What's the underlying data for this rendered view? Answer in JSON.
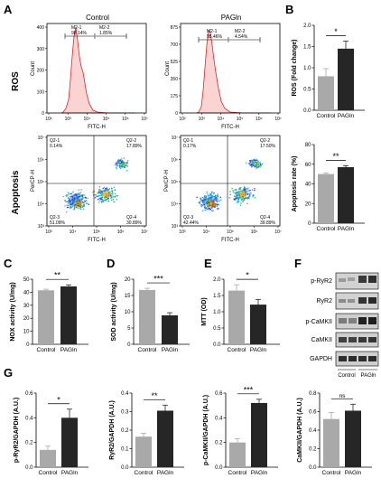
{
  "colors": {
    "control": "#a9a9a9",
    "pagln": "#262626",
    "axis": "#000000",
    "histLine": "#d62828",
    "histFill": "#f9d4d2",
    "blotBg": "#d2d2d2"
  },
  "panel_labels": [
    "A",
    "B",
    "C",
    "D",
    "E",
    "F",
    "G"
  ],
  "row_labels": {
    "ros": "ROS",
    "apoptosis": "Apoptosis"
  },
  "flow": {
    "control_title": "Control",
    "pagln_title": "PAGln",
    "hist": {
      "y_label": "Count",
      "x_label": "FITC-H",
      "x_ticks": [
        "10²",
        "10³",
        "10⁴",
        "10⁵",
        "10⁶",
        "10⁷"
      ],
      "control": {
        "y_ticks": [
          "0",
          "100",
          "200",
          "300",
          "400"
        ],
        "m1": "M2-1",
        "m1_pct": "98.14%",
        "m2": "M2-2",
        "m2_pct": "1.85%"
      },
      "pagln": {
        "y_ticks": [
          "0",
          "175",
          "350",
          "525",
          "700",
          "875"
        ],
        "m1": "M2-1",
        "m1_pct": "95.46%",
        "m2": "M2-2",
        "m2_pct": "4.54%"
      }
    },
    "dot": {
      "y_label": "PerCP-H",
      "x_label": "FITC-H",
      "x_ticks": [
        "10³",
        "10⁴",
        "10⁵",
        "10⁶",
        "10⁷"
      ],
      "y_ticks": [
        "10³",
        "10⁴",
        "10⁵",
        "10⁶",
        "10⁷"
      ],
      "control": {
        "q1": "Q2-1",
        "q1_pct": "0.14%",
        "q2": "Q2-2",
        "q2_pct": "17.89%",
        "q3": "Q2-3",
        "q3_pct": "51.09%",
        "q4": "Q2-4",
        "q4_pct": "30.89%"
      },
      "pagln": {
        "q1": "Q2-1",
        "q1_pct": "0.17%",
        "q2": "Q2-2",
        "q2_pct": "17.50%",
        "q3": "Q2-3",
        "q3_pct": "42.44%",
        "q4": "Q2-4",
        "q4_pct": "39.89%"
      }
    }
  },
  "blot": {
    "labels": [
      "p-RyR2",
      "RyR2",
      "p-CaMKII",
      "CaMKII",
      "GAPDH"
    ],
    "groups": [
      "Control",
      "PAGln"
    ]
  },
  "chart_data": [
    {
      "id": "B-ros",
      "panel": "B",
      "type": "bar",
      "categories": [
        "Control",
        "PAGln"
      ],
      "values": [
        0.8,
        1.45
      ],
      "errors": [
        0.18,
        0.18
      ],
      "ylabel": "ROS (Fold change)",
      "ylim": [
        0,
        2.0
      ],
      "yticks": [
        "0.0",
        "0.5",
        "1.0",
        "1.5",
        "2.0"
      ],
      "significance": "*"
    },
    {
      "id": "B-apoptosis",
      "panel": "B",
      "type": "bar",
      "categories": [
        "Control",
        "PAGln"
      ],
      "values": [
        50,
        57
      ],
      "errors": [
        1.0,
        1.5
      ],
      "ylabel": "Apoptosis rate (%)",
      "ylim": [
        0,
        80
      ],
      "yticks": [
        "0",
        "20",
        "40",
        "60",
        "80"
      ],
      "significance": "**"
    },
    {
      "id": "C-nox",
      "panel": "C",
      "type": "bar",
      "categories": [
        "Control",
        "PAGln"
      ],
      "values": [
        41.5,
        44.5
      ],
      "errors": [
        0.8,
        1.2
      ],
      "ylabel": "NOX activity (U/mg)",
      "ylim": [
        0,
        50
      ],
      "yticks": [
        "0",
        "10",
        "20",
        "30",
        "40",
        "50"
      ],
      "significance": "**"
    },
    {
      "id": "D-sod",
      "panel": "D",
      "type": "bar",
      "categories": [
        "Control",
        "PAGln"
      ],
      "values": [
        16.7,
        8.9
      ],
      "errors": [
        0.5,
        0.8
      ],
      "ylabel": "SOD activity (U/mg)",
      "ylim": [
        0,
        20
      ],
      "yticks": [
        "0",
        "5",
        "10",
        "15",
        "20"
      ],
      "significance": "***"
    },
    {
      "id": "E-mtt",
      "panel": "E",
      "type": "bar",
      "categories": [
        "Control",
        "PAGln"
      ],
      "values": [
        1.65,
        1.22
      ],
      "errors": [
        0.18,
        0.16
      ],
      "ylabel": "MTT (OD)",
      "ylim": [
        0,
        2.0
      ],
      "yticks": [
        "0.0",
        "0.5",
        "1.0",
        "1.5",
        "2.0"
      ],
      "significance": "*"
    },
    {
      "id": "G-prd",
      "panel": "G",
      "type": "bar",
      "categories": [
        "Control",
        "PAGln"
      ],
      "values": [
        0.14,
        0.4
      ],
      "errors": [
        0.03,
        0.07
      ],
      "ylabel": "p-RyR2/GAPDH (A.U.)",
      "ylim": [
        0,
        0.6
      ],
      "yticks": [
        "0.0",
        "0.2",
        "0.4",
        "0.6"
      ],
      "significance": "*"
    },
    {
      "id": "G-ryr2",
      "panel": "G",
      "type": "bar",
      "categories": [
        "Control",
        "PAGln"
      ],
      "values": [
        0.165,
        0.305
      ],
      "errors": [
        0.018,
        0.03
      ],
      "ylabel": "RyR2/GAPDH (A.U.)",
      "ylim": [
        0,
        0.4
      ],
      "yticks": [
        "0.0",
        "0.1",
        "0.2",
        "0.3",
        "0.4"
      ],
      "significance": "**"
    },
    {
      "id": "G-pcamkii",
      "panel": "G",
      "type": "bar",
      "categories": [
        "Control",
        "PAGln"
      ],
      "values": [
        0.2,
        0.52
      ],
      "errors": [
        0.03,
        0.03
      ],
      "ylabel": "p-CaMKII/GAPDH (A.U.)",
      "ylim": [
        0,
        0.6
      ],
      "yticks": [
        "0.0",
        "0.2",
        "0.4",
        "0.6"
      ],
      "significance": "***"
    },
    {
      "id": "G-camkii",
      "panel": "G",
      "type": "bar",
      "categories": [
        "Control",
        "PAGln"
      ],
      "values": [
        0.52,
        0.61
      ],
      "errors": [
        0.07,
        0.07
      ],
      "ylabel": "CaMKII/GAPDH (A.U.)",
      "ylim": [
        0,
        0.8
      ],
      "yticks": [
        "0.0",
        "0.2",
        "0.4",
        "0.6",
        "0.8"
      ],
      "significance": "ns"
    }
  ]
}
